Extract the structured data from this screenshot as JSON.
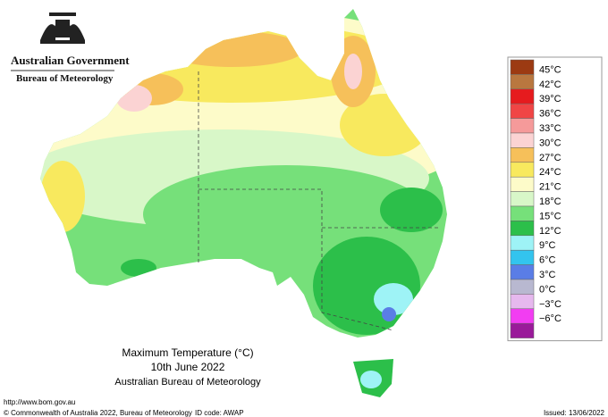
{
  "header": {
    "government": "Australian Government",
    "agency": "Bureau of Meteorology"
  },
  "map": {
    "title": "Maximum Temperature (°C)",
    "date": "10th June 2022",
    "source": "Australian Bureau of Meteorology"
  },
  "legend": {
    "labels": [
      "45°C",
      "42°C",
      "39°C",
      "36°C",
      "33°C",
      "30°C",
      "27°C",
      "24°C",
      "21°C",
      "18°C",
      "15°C",
      "12°C",
      "9°C",
      "6°C",
      "3°C",
      "0°C",
      "−3°C",
      "−6°C"
    ],
    "colors": [
      "#9c3a12",
      "#b9773f",
      "#e61b1e",
      "#f04545",
      "#f59a9a",
      "#fbd3d3",
      "#f6c05a",
      "#f8e95e",
      "#fdfbc9",
      "#d8f7c8",
      "#76e07a",
      "#2cbf4a",
      "#9ef3f6",
      "#33c4ee",
      "#5a7de6",
      "#b8b8d0",
      "#e6b8ee",
      "#f23df2",
      "#9a1a9a"
    ]
  },
  "footer": {
    "url": "http://www.bom.gov.au",
    "copyright": "© Commonwealth of Australia 2022, Bureau of Meteorology",
    "id_code": "ID code: AWAP",
    "issued": "Issued: 13/06/2022"
  }
}
